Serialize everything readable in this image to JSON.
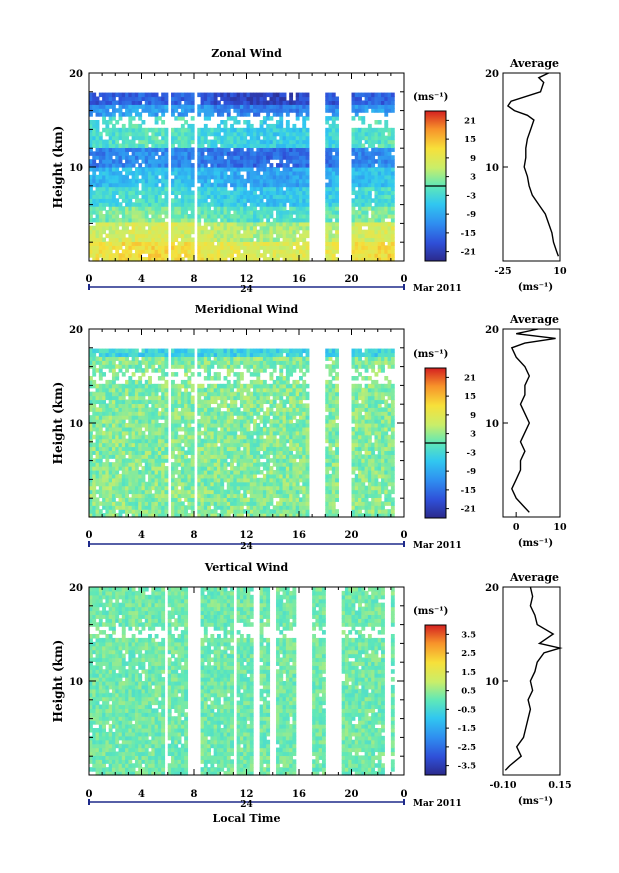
{
  "chart_data": [
    {
      "type": "heatmap",
      "title": "Zonal Wind",
      "ylabel": "Height (km)",
      "ylim": [
        0,
        20
      ],
      "y_ticks": [
        "10",
        "20"
      ],
      "xlim": [
        0,
        24
      ],
      "x_ticks": [
        "0",
        "4",
        "8",
        "12",
        "16",
        "20",
        "0"
      ],
      "day_label": "24",
      "date_label": "Mar 2011",
      "colorbar": {
        "unit_label": "(ms⁻¹)",
        "ticks": [
          "21",
          "15",
          "9",
          "3",
          "-3",
          "-9",
          "-15",
          "-21"
        ],
        "range": [
          -24,
          24
        ],
        "contour_at": 0
      },
      "data_gaps_hours": [
        [
          6.0,
          6.3
        ],
        [
          8.0,
          8.3
        ],
        [
          16.8,
          18.1
        ],
        [
          19.0,
          20.0
        ],
        [
          23.3,
          24.0
        ]
      ],
      "profile": {
        "title": "Average",
        "xlabel": "(ms⁻¹)",
        "x_ticks": [
          "-25",
          "10"
        ],
        "y_ticks": [
          "10",
          "20"
        ],
        "xlim": [
          -25,
          10
        ],
        "heights_km": [
          0.5,
          1,
          2,
          3,
          4,
          5,
          6,
          7,
          8,
          9,
          10,
          11,
          12,
          13,
          14,
          15,
          15.5,
          16,
          16.5,
          17,
          18,
          19,
          19.5,
          20
        ],
        "values": [
          9,
          8,
          6,
          5,
          3,
          1,
          -3,
          -7,
          -9,
          -10,
          -12,
          -11,
          -11,
          -10,
          -8,
          -6,
          -10,
          -18,
          -22,
          -20,
          -2,
          0,
          -3,
          3
        ]
      }
    },
    {
      "type": "heatmap",
      "title": "Meridional Wind",
      "ylabel": "Height (km)",
      "ylim": [
        0,
        20
      ],
      "y_ticks": [
        "10",
        "20"
      ],
      "xlim": [
        0,
        24
      ],
      "x_ticks": [
        "0",
        "4",
        "8",
        "12",
        "16",
        "20",
        "0"
      ],
      "day_label": "24",
      "date_label": "Mar 2011",
      "colorbar": {
        "unit_label": "(ms⁻¹)",
        "ticks": [
          "21",
          "15",
          "9",
          "3",
          "-3",
          "-9",
          "-15",
          "-21"
        ],
        "range": [
          -24,
          24
        ],
        "contour_at": 0
      },
      "data_gaps_hours": [
        [
          6.0,
          6.3
        ],
        [
          8.0,
          8.3
        ],
        [
          16.8,
          18.1
        ],
        [
          19.0,
          20.0
        ],
        [
          23.3,
          24.0
        ]
      ],
      "profile": {
        "title": "Average",
        "xlabel": "(ms⁻¹)",
        "x_ticks": [
          "0",
          "10"
        ],
        "y_ticks": [
          "10",
          "20"
        ],
        "xlim": [
          -3,
          10
        ],
        "heights_km": [
          0.5,
          1,
          2,
          3,
          4,
          5,
          6,
          7,
          8,
          9,
          10,
          11,
          12,
          13,
          14,
          15,
          16,
          17,
          18,
          18.5,
          19,
          19.5,
          20
        ],
        "values": [
          3,
          2,
          0,
          -1,
          0,
          1,
          1,
          2,
          1,
          2,
          3,
          2,
          1,
          2,
          2,
          3,
          2,
          0,
          -1,
          2,
          9,
          0,
          5
        ]
      }
    },
    {
      "type": "heatmap",
      "title": "Vertical Wind",
      "ylabel": "Height (km)",
      "ylim": [
        0,
        20
      ],
      "y_ticks": [
        "10",
        "20"
      ],
      "xlim": [
        0,
        24
      ],
      "x_ticks": [
        "0",
        "4",
        "8",
        "12",
        "16",
        "20",
        "0"
      ],
      "day_label": "24",
      "date_label": "Mar 2011",
      "xlabel": "Local Time",
      "colorbar": {
        "unit_label": "(ms⁻¹)",
        "ticks": [
          "3.5",
          "2.5",
          "1.5",
          "0.5",
          "-0.5",
          "-1.5",
          "-2.5",
          "-3.5"
        ],
        "range": [
          -4,
          4
        ]
      },
      "data_gaps_hours": [
        [
          5.7,
          5.9
        ],
        [
          7.5,
          8.5
        ],
        [
          11.0,
          11.3
        ],
        [
          12.6,
          12.9
        ],
        [
          13.7,
          14.3
        ],
        [
          15.7,
          17.1
        ],
        [
          18.1,
          19.2
        ],
        [
          22.6,
          22.9
        ],
        [
          23.3,
          24.0
        ]
      ],
      "profile": {
        "title": "Average",
        "xlabel": "(ms⁻¹)",
        "x_ticks": [
          "-0.10",
          "0.15"
        ],
        "y_ticks": [
          "10",
          "20"
        ],
        "xlim": [
          -0.1,
          0.15
        ],
        "heights_km": [
          0.5,
          1,
          2,
          3,
          4,
          5,
          6,
          7,
          8,
          9,
          10,
          11,
          12,
          13,
          13.5,
          14,
          15,
          16,
          17,
          18,
          19,
          20
        ],
        "values": [
          -0.09,
          -0.07,
          -0.02,
          -0.04,
          -0.01,
          0.0,
          0.01,
          0.02,
          0.01,
          0.03,
          0.02,
          0.04,
          0.05,
          0.08,
          0.15,
          0.06,
          0.12,
          0.05,
          0.04,
          0.02,
          0.03,
          0.02
        ]
      }
    }
  ]
}
